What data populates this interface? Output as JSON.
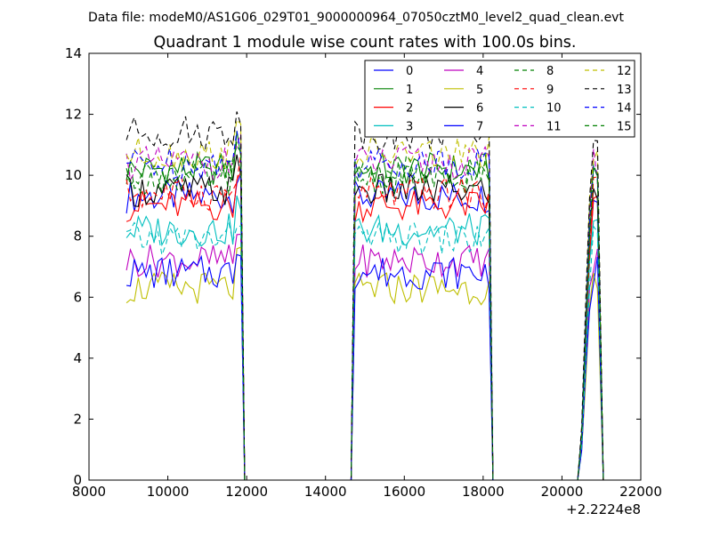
{
  "suptitle": "Data file: modeM0/AS1G06_029T01_9000000964_07050cztM0_level2_quad_clean.evt",
  "chart_data": {
    "type": "line",
    "title": "Quadrant 1 module wise count rates with 100.0s bins.",
    "xlabel": "",
    "ylabel": "",
    "x_offset_label": "+2.2224e8",
    "xlim": [
      8000,
      22000
    ],
    "ylim": [
      0,
      14
    ],
    "xticks": [
      8000,
      10000,
      12000,
      14000,
      16000,
      18000,
      20000,
      22000
    ],
    "yticks": [
      0,
      2,
      4,
      6,
      8,
      10,
      12,
      14
    ],
    "grid": false,
    "legend_position": "top-right",
    "legend_columns": 4,
    "segments": [
      {
        "start": 8950,
        "end": 11850
      },
      {
        "start": 14750,
        "end": 18150
      },
      {
        "start": 20500,
        "end": 20950
      }
    ],
    "series": [
      {
        "name": "0",
        "color": "#0000ff",
        "dash": "solid",
        "level": 9.3
      },
      {
        "name": "1",
        "color": "#008000",
        "dash": "solid",
        "level": 10.2
      },
      {
        "name": "2",
        "color": "#ff0000",
        "dash": "solid",
        "level": 9.0
      },
      {
        "name": "3",
        "color": "#00bfbf",
        "dash": "solid",
        "level": 8.2
      },
      {
        "name": "4",
        "color": "#bf00bf",
        "dash": "solid",
        "level": 7.2
      },
      {
        "name": "5",
        "color": "#bfbf00",
        "dash": "solid",
        "level": 6.3
      },
      {
        "name": "6",
        "color": "#000000",
        "dash": "solid",
        "level": 9.5
      },
      {
        "name": "7",
        "color": "#0000ff",
        "dash": "solid",
        "level": 6.8
      },
      {
        "name": "8",
        "color": "#008000",
        "dash": "dashed",
        "level": 9.9
      },
      {
        "name": "9",
        "color": "#ff0000",
        "dash": "dashed",
        "level": 9.4
      },
      {
        "name": "10",
        "color": "#00bfbf",
        "dash": "dashed",
        "level": 7.9
      },
      {
        "name": "11",
        "color": "#bf00bf",
        "dash": "dashed",
        "level": 10.4
      },
      {
        "name": "12",
        "color": "#bfbf00",
        "dash": "dashed",
        "level": 10.7
      },
      {
        "name": "13",
        "color": "#000000",
        "dash": "dashed",
        "level": 11.4
      },
      {
        "name": "14",
        "color": "#0000ff",
        "dash": "dashed",
        "level": 10.4
      },
      {
        "name": "15",
        "color": "#008000",
        "dash": "dashed",
        "level": 10.1
      }
    ]
  }
}
